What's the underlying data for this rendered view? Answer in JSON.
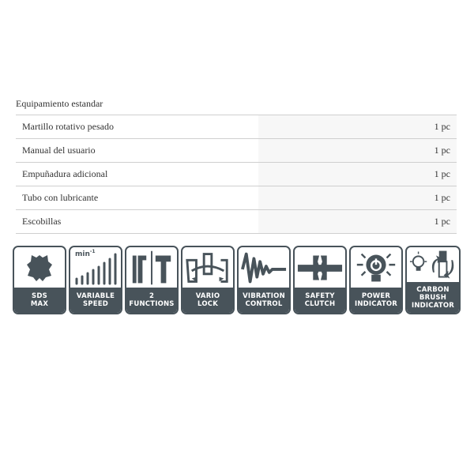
{
  "section_title": "Equipamiento estandar",
  "items": [
    {
      "name": "Martillo rotativo pesado",
      "qty": "1 pc"
    },
    {
      "name": "Manual del usuario",
      "qty": "1 pc"
    },
    {
      "name": "Empuñadura adicional",
      "qty": "1 pc"
    },
    {
      "name": "Tubo con lubricante",
      "qty": "1 pc"
    },
    {
      "name": "Escobillas",
      "qty": "1 pc"
    }
  ],
  "features": [
    {
      "icon": "sds-max-icon",
      "line1": "SDS",
      "line2": "MAX",
      "line3": ""
    },
    {
      "icon": "variable-speed-icon",
      "line1": "VARIABLE",
      "line2": "SPEED",
      "line3": "",
      "unit": "min-1"
    },
    {
      "icon": "two-functions-icon",
      "line1": "2",
      "line2": "FUNCTIONS",
      "line3": ""
    },
    {
      "icon": "vario-lock-icon",
      "line1": "VARIO",
      "line2": "LOCK",
      "line3": ""
    },
    {
      "icon": "vibration-control-icon",
      "line1": "VIBRATION",
      "line2": "CONTROL",
      "line3": ""
    },
    {
      "icon": "safety-clutch-icon",
      "line1": "SAFETY",
      "line2": "CLUTCH",
      "line3": ""
    },
    {
      "icon": "power-indicator-icon",
      "line1": "POWER",
      "line2": "INDICATOR",
      "line3": ""
    },
    {
      "icon": "carbon-brush-indicator-icon",
      "line1": "CARBON",
      "line2": "BRUSH",
      "line3": "INDICATOR"
    }
  ],
  "colors": {
    "tile_dark": "#48535a"
  }
}
